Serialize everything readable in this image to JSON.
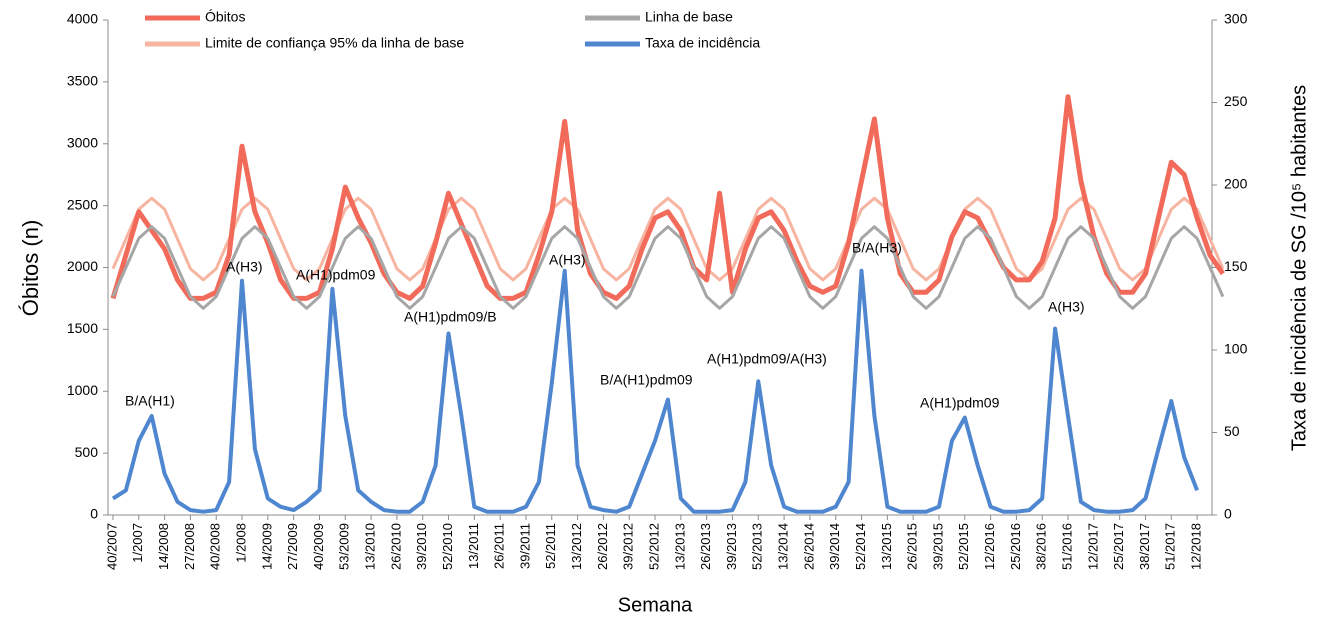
{
  "chart_data": {
    "type": "line",
    "xlabel": "Semana",
    "ylabel": "Óbitos (n)",
    "y2label": "Taxa de incidência de SG /10⁵ habitantes",
    "xlim": [
      -2.5,
      553.5
    ],
    "ylim": [
      0,
      4000
    ],
    "yticks": [
      0,
      500,
      1000,
      1500,
      2000,
      2500,
      3000,
      3500,
      4000
    ],
    "y2lim": [
      0,
      300
    ],
    "y2ticks": [
      0,
      50,
      100,
      150,
      200,
      250,
      300
    ],
    "xticks": [
      {
        "value": 0,
        "label": "40/2007"
      },
      {
        "value": 13,
        "label": "1/2007"
      },
      {
        "value": 26,
        "label": "14/2008"
      },
      {
        "value": 39,
        "label": "27/2008"
      },
      {
        "value": 52,
        "label": "40/2008"
      },
      {
        "value": 65,
        "label": "1/2008"
      },
      {
        "value": 78,
        "label": "14/2009"
      },
      {
        "value": 91,
        "label": "27/2009"
      },
      {
        "value": 104,
        "label": "40/2009"
      },
      {
        "value": 117,
        "label": "53/2009"
      },
      {
        "value": 130,
        "label": "13/2010"
      },
      {
        "value": 143,
        "label": "26/2010"
      },
      {
        "value": 156,
        "label": "39/2010"
      },
      {
        "value": 169,
        "label": "52/2010"
      },
      {
        "value": 182,
        "label": "13/2011"
      },
      {
        "value": 195,
        "label": "26/2011"
      },
      {
        "value": 208,
        "label": "39/2011"
      },
      {
        "value": 221,
        "label": "52/2011"
      },
      {
        "value": 234,
        "label": "13/2012"
      },
      {
        "value": 247,
        "label": "26/2012"
      },
      {
        "value": 260,
        "label": "39/2012"
      },
      {
        "value": 273,
        "label": "52/2012"
      },
      {
        "value": 286,
        "label": "13/2013"
      },
      {
        "value": 299,
        "label": "26/2013"
      },
      {
        "value": 312,
        "label": "39/2013"
      },
      {
        "value": 325,
        "label": "52/2013"
      },
      {
        "value": 338,
        "label": "13/2014"
      },
      {
        "value": 351,
        "label": "26/2014"
      },
      {
        "value": 364,
        "label": "39/2014"
      },
      {
        "value": 377,
        "label": "52/2014"
      },
      {
        "value": 390,
        "label": "13/2015"
      },
      {
        "value": 403,
        "label": "26/2015"
      },
      {
        "value": 416,
        "label": "39/2015"
      },
      {
        "value": 429,
        "label": "52/2015"
      },
      {
        "value": 442,
        "label": "12/2016"
      },
      {
        "value": 455,
        "label": "25/2016"
      },
      {
        "value": 468,
        "label": "38/2016"
      },
      {
        "value": 481,
        "label": "51/2016"
      },
      {
        "value": 494,
        "label": "12/2017"
      },
      {
        "value": 507,
        "label": "25/2017"
      },
      {
        "value": 520,
        "label": "38/2017"
      },
      {
        "value": 533,
        "label": "51/2017"
      },
      {
        "value": 546,
        "label": "12/2018"
      }
    ],
    "x": [
      0,
      6.5,
      13,
      19.5,
      26,
      32.5,
      39,
      45.5,
      52,
      58.5,
      65,
      71.5,
      78,
      84.5,
      91,
      97.5,
      104,
      110.5,
      117,
      123.5,
      130,
      136.5,
      143,
      149.5,
      156,
      162.5,
      169,
      175.5,
      182,
      188.5,
      195,
      201.5,
      208,
      214.5,
      221,
      227.5,
      234,
      240.5,
      247,
      253.5,
      260,
      266.5,
      273,
      279.5,
      286,
      292.5,
      299,
      305.5,
      312,
      318.5,
      325,
      331.5,
      338,
      344.5,
      351,
      357.5,
      364,
      370.5,
      377,
      383.5,
      390,
      396.5,
      403,
      409.5,
      416,
      422.5,
      429,
      435.5,
      442,
      448.5,
      455,
      461.5,
      468,
      474.5,
      481,
      487.5,
      494,
      500.5,
      507,
      513.5,
      520,
      526.5,
      533,
      539.5,
      546,
      552.5,
      559
    ],
    "series": [
      {
        "name": "Limite de confiança 95% da linha de base",
        "color": "#f7b4a0",
        "values": [
          1990,
          2230,
          2470,
          2560,
          2470,
          2230,
          1990,
          1900,
          1990,
          2230,
          2470,
          2560,
          2470,
          2230,
          1990,
          1900,
          1990,
          2230,
          2470,
          2560,
          2470,
          2230,
          1990,
          1900,
          1990,
          2230,
          2470,
          2560,
          2470,
          2230,
          1990,
          1900,
          1990,
          2230,
          2470,
          2560,
          2470,
          2230,
          1990,
          1900,
          1990,
          2230,
          2470,
          2560,
          2470,
          2230,
          1990,
          1900,
          1990,
          2230,
          2470,
          2560,
          2470,
          2230,
          1990,
          1900,
          1990,
          2230,
          2470,
          2560,
          2470,
          2230,
          1990,
          1900,
          1990,
          2230,
          2470,
          2560,
          2470,
          2230,
          1990,
          1900,
          1990,
          2230,
          2470,
          2560,
          2470,
          2230,
          1990,
          1900,
          1990,
          2230,
          2470,
          2560,
          2470,
          2230,
          1990
        ]
      },
      {
        "name": "Óbitos",
        "color": "#f26a5a",
        "values": [
          1750,
          2100,
          2450,
          2300,
          2150,
          1900,
          1750,
          1750,
          1800,
          2100,
          2980,
          2450,
          2200,
          1900,
          1750,
          1750,
          1800,
          2150,
          2650,
          2400,
          2200,
          1950,
          1800,
          1750,
          1850,
          2200,
          2600,
          2350,
          2100,
          1850,
          1750,
          1750,
          1800,
          2100,
          2450,
          3180,
          2300,
          1950,
          1800,
          1750,
          1850,
          2150,
          2400,
          2450,
          2300,
          2000,
          1900,
          2600,
          1800,
          2150,
          2400,
          2450,
          2300,
          2050,
          1850,
          1800,
          1850,
          2200,
          2700,
          3200,
          2400,
          1950,
          1800,
          1800,
          1900,
          2250,
          2450,
          2400,
          2200,
          2000,
          1900,
          1900,
          2050,
          2400,
          3380,
          2700,
          2250,
          1950,
          1800,
          1800,
          1950,
          2400,
          2850,
          2750,
          2400,
          2100,
          1950
        ]
      },
      {
        "name": "Linha de base",
        "color": "#a6a6a6",
        "values": [
          1765,
          2000,
          2235,
          2330,
          2235,
          2000,
          1765,
          1670,
          1765,
          2000,
          2235,
          2330,
          2235,
          2000,
          1765,
          1670,
          1765,
          2000,
          2235,
          2330,
          2235,
          2000,
          1765,
          1670,
          1765,
          2000,
          2235,
          2330,
          2235,
          2000,
          1765,
          1670,
          1765,
          2000,
          2235,
          2330,
          2235,
          2000,
          1765,
          1670,
          1765,
          2000,
          2235,
          2330,
          2235,
          2000,
          1765,
          1670,
          1765,
          2000,
          2235,
          2330,
          2235,
          2000,
          1765,
          1670,
          1765,
          2000,
          2235,
          2330,
          2235,
          2000,
          1765,
          1670,
          1765,
          2000,
          2235,
          2330,
          2235,
          2000,
          1765,
          1670,
          1765,
          2000,
          2235,
          2330,
          2235,
          2000,
          1765,
          1670,
          1765,
          2000,
          2235,
          2330,
          2235,
          2000,
          1765
        ]
      },
      {
        "name": "Taxa de incidência",
        "color": "#4f86d0",
        "axis": "y2",
        "values": [
          10,
          15,
          45,
          60,
          25,
          8,
          3,
          2,
          3,
          20,
          142,
          40,
          10,
          5,
          3,
          8,
          15,
          137,
          60,
          15,
          8,
          3,
          2,
          2,
          8,
          30,
          110,
          60,
          5,
          2,
          2,
          2,
          5,
          20,
          80,
          148,
          30,
          5,
          3,
          2,
          5,
          25,
          45,
          70,
          10,
          2,
          2,
          2,
          3,
          20,
          81,
          30,
          5,
          2,
          2,
          2,
          5,
          20,
          148,
          60,
          5,
          2,
          2,
          2,
          5,
          45,
          59,
          30,
          5,
          2,
          2,
          3,
          10,
          113,
          60,
          8,
          3,
          2,
          2,
          3,
          10,
          40,
          69,
          35,
          15,
          null,
          null
        ]
      }
    ],
    "annotations": [
      "B/A(H1)",
      "A(H3)",
      "A(H1)pdm09",
      "A(H1)pdm09/B",
      "A(H3)",
      "B/A(H1)pdm09",
      "A(H1)pdm09/A(H3)",
      "B/A(H3)",
      "A(H1)pdm09",
      "A(H3)"
    ]
  }
}
